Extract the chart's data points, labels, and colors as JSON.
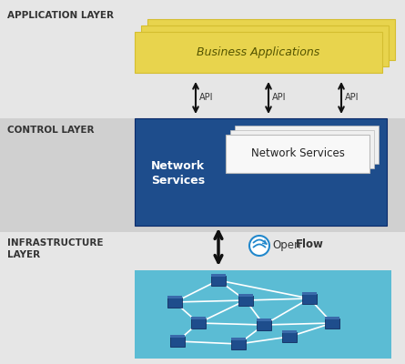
{
  "bg_color": "#e6e6e6",
  "ctrl_bg_color": "#d0d0d0",
  "app_layer_label": "APPLICATION LAYER",
  "control_layer_label": "CONTROL LAYER",
  "infra_layer_label": "INFRASTRUCTURE\nLAYER",
  "business_app_text": "Business Applications",
  "network_services_left": "Network\nServices",
  "network_services_right": "Network Services",
  "api_labels": [
    "API",
    "API",
    "API"
  ],
  "yellow_color": "#e8d44d",
  "yellow_shadow": "#d4be30",
  "blue_dark": "#1e4d8c",
  "blue_light": "#5bbcd4",
  "white": "#ffffff",
  "arrow_color": "#111111",
  "openflow_blue": "#2288cc",
  "text_dark": "#333333",
  "ns_box_color": "#f0f0f0",
  "ns_box_edge": "#bbbbbb"
}
